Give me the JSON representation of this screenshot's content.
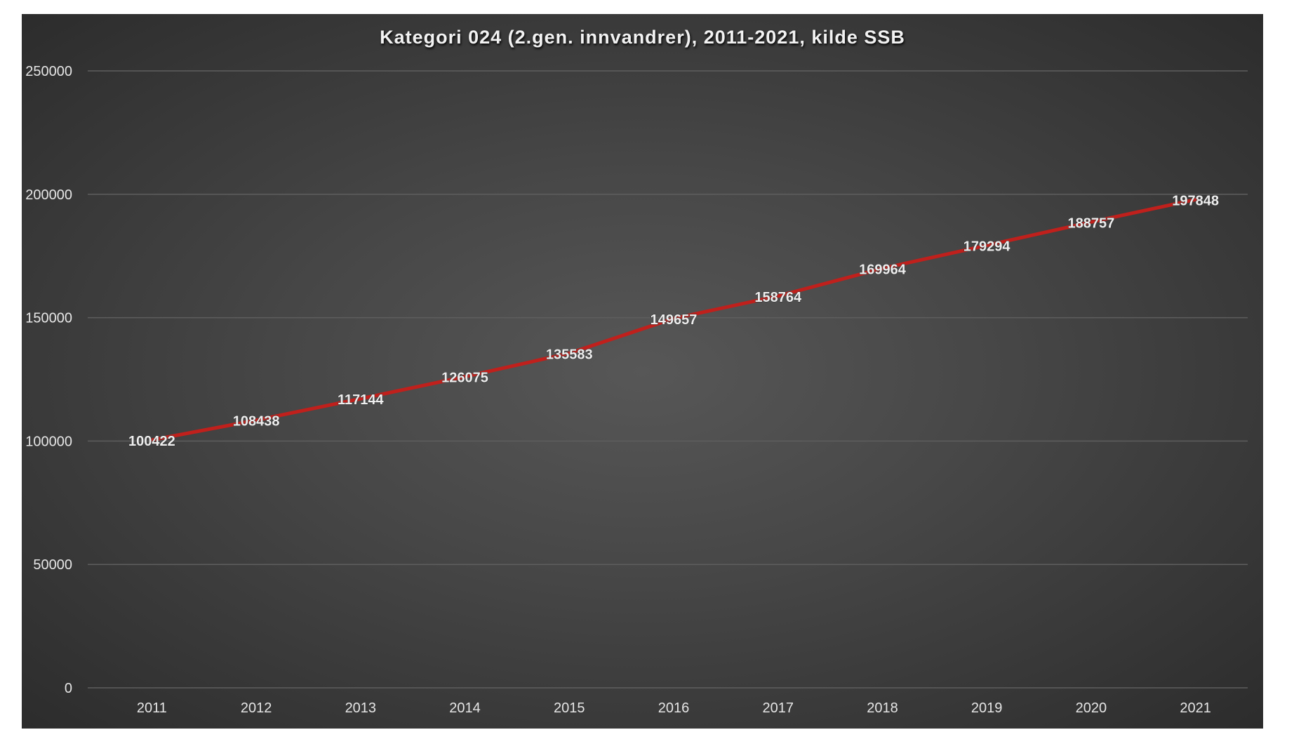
{
  "chart_data": {
    "type": "line",
    "title": "Kategori 024 (2.gen. innvandrer), 2011-2021, kilde SSB",
    "xlabel": "",
    "ylabel": "",
    "categories": [
      "2011",
      "2012",
      "2013",
      "2014",
      "2015",
      "2016",
      "2017",
      "2018",
      "2019",
      "2020",
      "2021"
    ],
    "series": [
      {
        "name": "Kategori 024",
        "color": "#c0201c",
        "values": [
          100422,
          108438,
          117144,
          126075,
          135583,
          149657,
          158764,
          169964,
          179294,
          188757,
          197848
        ]
      }
    ],
    "data_labels": [
      "100422",
      "108438",
      "117144",
      "126075",
      "135583",
      "149657",
      "158764",
      "169964",
      "179294",
      "188757",
      "197848"
    ],
    "ylim": [
      0,
      250000
    ],
    "yticks": [
      0,
      50000,
      100000,
      150000,
      200000,
      250000
    ],
    "ytick_labels": [
      "0",
      "50000",
      "100000",
      "150000",
      "200000",
      "250000"
    ],
    "grid": true,
    "legend": "none"
  }
}
